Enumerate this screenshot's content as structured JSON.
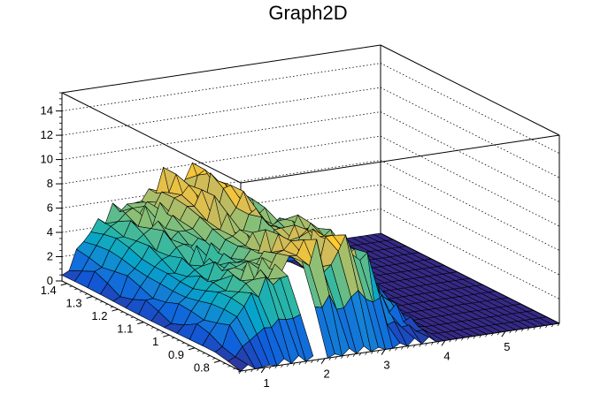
{
  "chart_data": {
    "type": "surface",
    "title": "Graph2D",
    "xlabel": "",
    "ylabel": "",
    "zlabel": "",
    "xlim": [
      0.6,
      5.9
    ],
    "ylim": [
      0.72,
      1.42
    ],
    "zlim": [
      0,
      15.5
    ],
    "x_ticks": [
      1,
      2,
      3,
      4,
      5
    ],
    "y_ticks": [
      0.8,
      0.9,
      1,
      1.1,
      1.2,
      1.3,
      1.4
    ],
    "z_ticks": [
      0,
      2,
      4,
      6,
      8,
      10,
      12,
      14
    ],
    "y_tick_labels": [
      "0.8",
      "0.9",
      "1",
      "1.1",
      "1.2",
      "1.3",
      "1.4"
    ],
    "grid": true,
    "colormap": [
      "#352a87",
      "#0f5cdd",
      "#1481d6",
      "#06a4ca",
      "#2eb7a4",
      "#87bf77",
      "#d1bb59",
      "#fec832",
      "#f9fb0e"
    ],
    "surface_profile": {
      "description_points_x": [
        0.6,
        0.75,
        0.9,
        1.0,
        1.1,
        1.2,
        1.3,
        1.4,
        1.5,
        1.6,
        1.7,
        1.8,
        1.9,
        2.0,
        2.1,
        2.2,
        2.3,
        2.4,
        2.5,
        2.6,
        2.7,
        2.8,
        2.9,
        3.0,
        3.1,
        3.2,
        3.3,
        3.4,
        3.6,
        3.8,
        4.0,
        5.9
      ],
      "height_y_high": [
        0.5,
        1.5,
        2.8,
        3.5,
        4.2,
        4.6,
        4.9,
        5.3,
        5.8,
        6.0,
        5.2,
        6.3,
        5.5,
        6.6,
        7.2,
        6.5,
        8.4,
        6.4,
        5.2,
        7.1,
        8.7,
        7.9,
        7.0,
        6.2,
        6.8,
        6.4,
        6.5,
        5.9,
        4.0,
        2.0,
        0,
        0
      ],
      "height_y_low": [
        0,
        0,
        0,
        0,
        0,
        0,
        0,
        0,
        0,
        0,
        0,
        0,
        0,
        0,
        0,
        0,
        0,
        0,
        0,
        0,
        0,
        0,
        0,
        0,
        0,
        0,
        0,
        0,
        0,
        0,
        0,
        0
      ]
    }
  }
}
